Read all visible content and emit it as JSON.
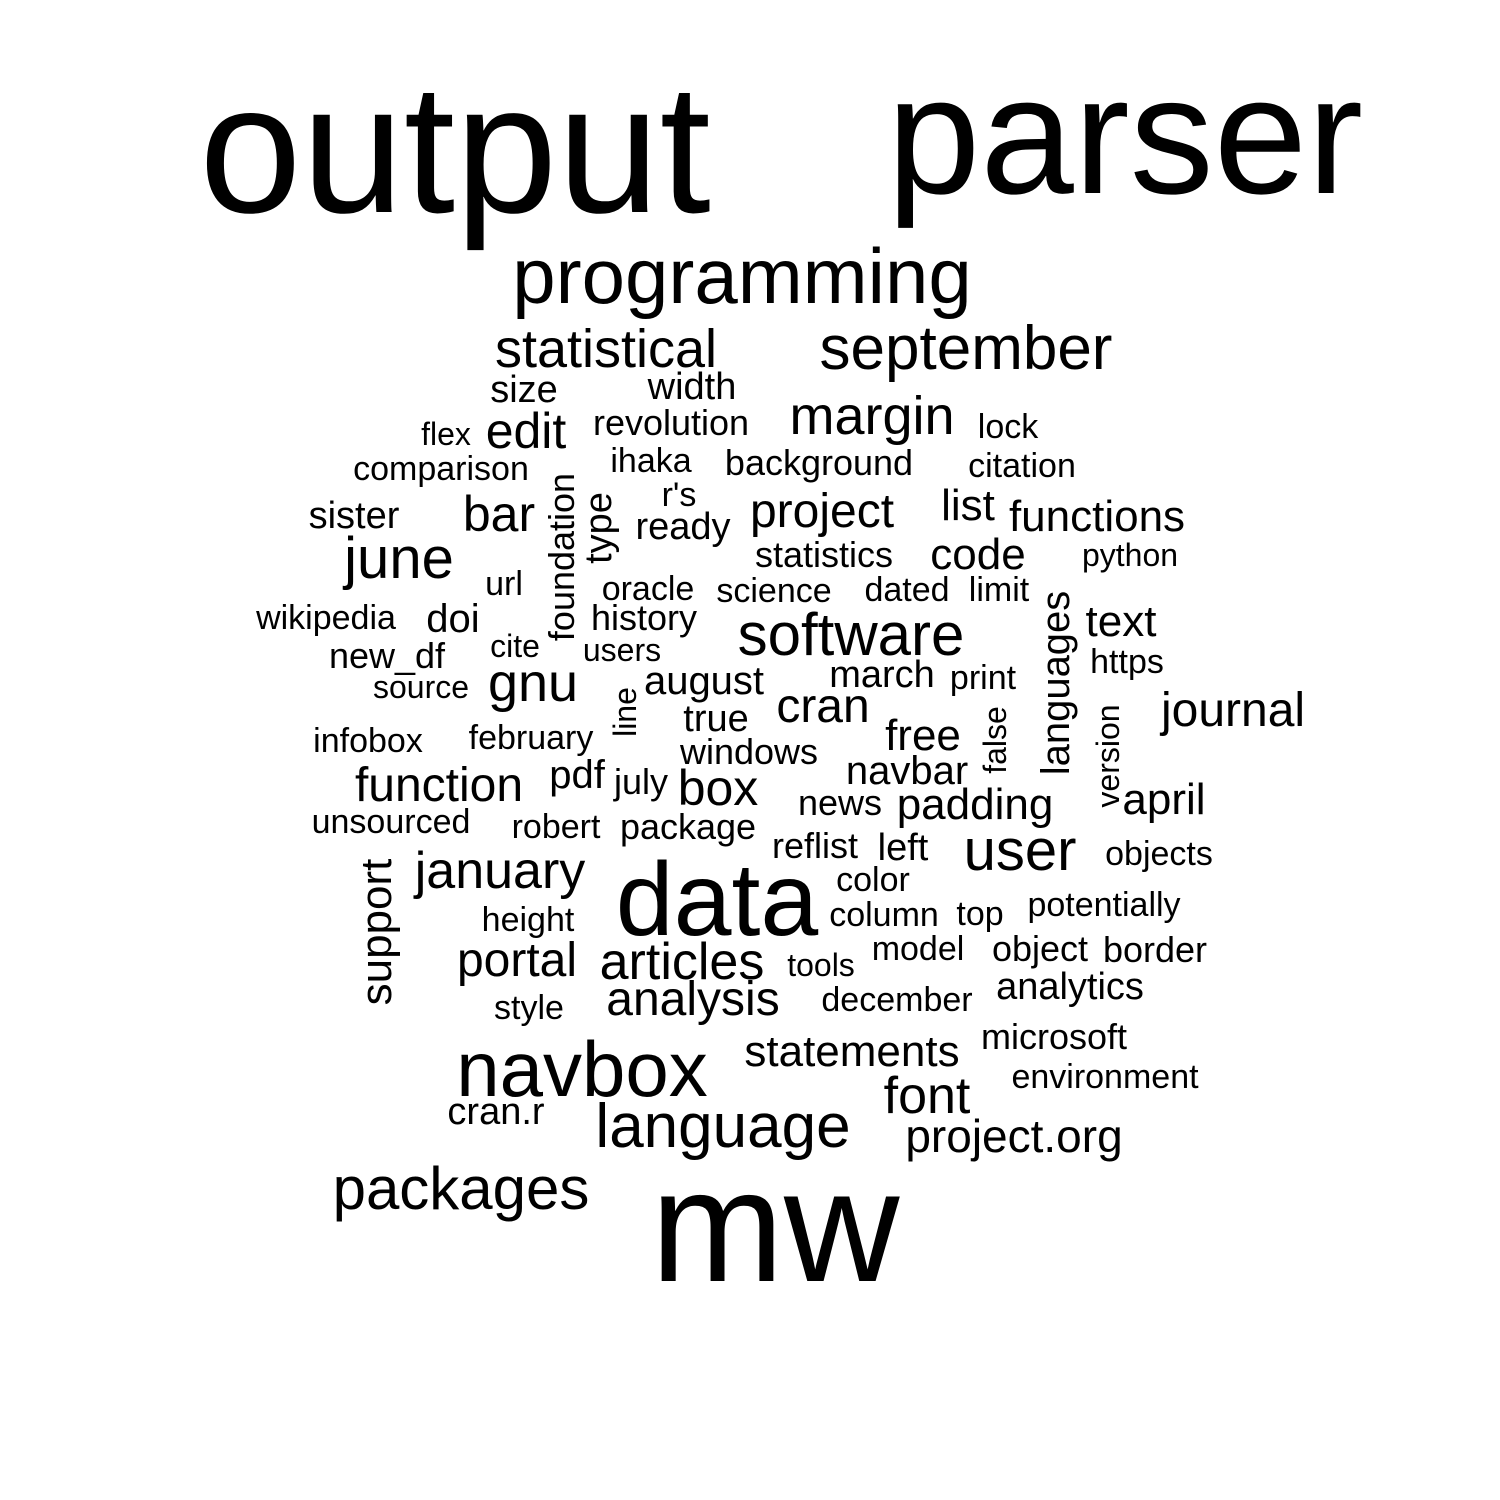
{
  "words": [
    {
      "text": "output"
    },
    {
      "text": "parser"
    },
    {
      "text": "programming"
    },
    {
      "text": "statistical"
    },
    {
      "text": "september"
    },
    {
      "text": "size"
    },
    {
      "text": "width"
    },
    {
      "text": "margin"
    },
    {
      "text": "flex"
    },
    {
      "text": "edit"
    },
    {
      "text": "revolution"
    },
    {
      "text": "lock"
    },
    {
      "text": "comparison"
    },
    {
      "text": "ihaka"
    },
    {
      "text": "background"
    },
    {
      "text": "citation"
    },
    {
      "text": "r's"
    },
    {
      "text": "sister"
    },
    {
      "text": "bar"
    },
    {
      "text": "foundation"
    },
    {
      "text": "type"
    },
    {
      "text": "ready"
    },
    {
      "text": "project"
    },
    {
      "text": "list"
    },
    {
      "text": "functions"
    },
    {
      "text": "june"
    },
    {
      "text": "statistics"
    },
    {
      "text": "code"
    },
    {
      "text": "python"
    },
    {
      "text": "url"
    },
    {
      "text": "oracle"
    },
    {
      "text": "science"
    },
    {
      "text": "dated"
    },
    {
      "text": "limit"
    },
    {
      "text": "wikipedia"
    },
    {
      "text": "doi"
    },
    {
      "text": "history"
    },
    {
      "text": "software"
    },
    {
      "text": "languages"
    },
    {
      "text": "text"
    },
    {
      "text": "new_df"
    },
    {
      "text": "cite"
    },
    {
      "text": "users"
    },
    {
      "text": "https"
    },
    {
      "text": "source"
    },
    {
      "text": "gnu"
    },
    {
      "text": "august"
    },
    {
      "text": "march"
    },
    {
      "text": "print"
    },
    {
      "text": "line"
    },
    {
      "text": "cran"
    },
    {
      "text": "journal"
    },
    {
      "text": "infobox"
    },
    {
      "text": "february"
    },
    {
      "text": "true"
    },
    {
      "text": "free"
    },
    {
      "text": "false"
    },
    {
      "text": "version"
    },
    {
      "text": "windows"
    },
    {
      "text": "navbar"
    },
    {
      "text": "function"
    },
    {
      "text": "pdf"
    },
    {
      "text": "july"
    },
    {
      "text": "box"
    },
    {
      "text": "news"
    },
    {
      "text": "padding"
    },
    {
      "text": "april"
    },
    {
      "text": "unsourced"
    },
    {
      "text": "robert"
    },
    {
      "text": "package"
    },
    {
      "text": "reflist"
    },
    {
      "text": "left"
    },
    {
      "text": "user"
    },
    {
      "text": "objects"
    },
    {
      "text": "support"
    },
    {
      "text": "january"
    },
    {
      "text": "data"
    },
    {
      "text": "color"
    },
    {
      "text": "height"
    },
    {
      "text": "column"
    },
    {
      "text": "top"
    },
    {
      "text": "potentially"
    },
    {
      "text": "portal"
    },
    {
      "text": "articles"
    },
    {
      "text": "tools"
    },
    {
      "text": "model"
    },
    {
      "text": "object"
    },
    {
      "text": "border"
    },
    {
      "text": "style"
    },
    {
      "text": "analysis"
    },
    {
      "text": "december"
    },
    {
      "text": "analytics"
    },
    {
      "text": "navbox"
    },
    {
      "text": "statements"
    },
    {
      "text": "microsoft"
    },
    {
      "text": "environment"
    },
    {
      "text": "cran.r"
    },
    {
      "text": "language"
    },
    {
      "text": "font"
    },
    {
      "text": "project.org"
    },
    {
      "text": "packages"
    },
    {
      "text": "mw"
    }
  ]
}
